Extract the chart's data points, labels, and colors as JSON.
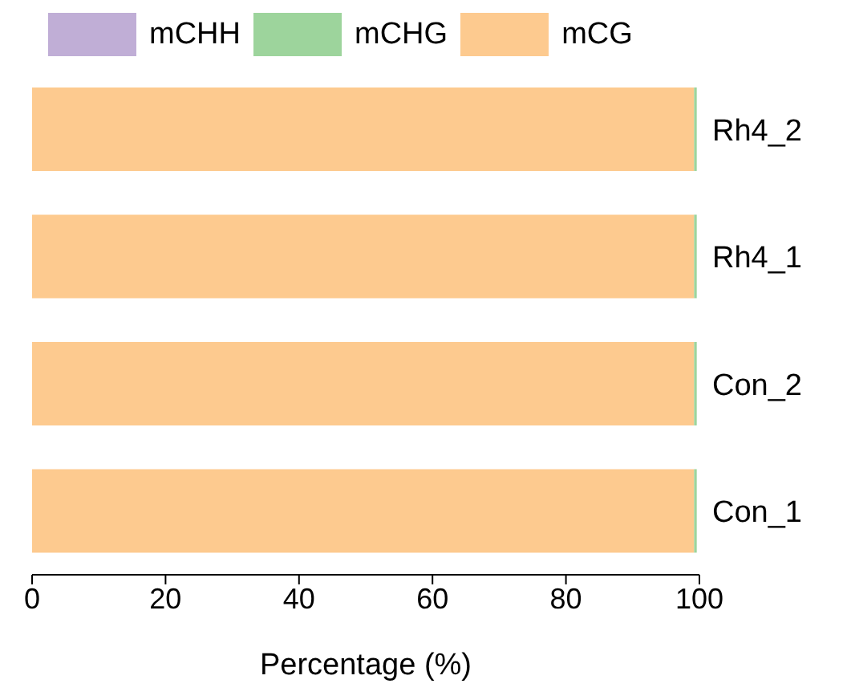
{
  "chart_data": {
    "type": "bar",
    "orientation": "horizontal",
    "stacked": true,
    "xlabel": "Percentage (%)",
    "categories": [
      "Rh4_2",
      "Rh4_1",
      "Con_2",
      "Con_1"
    ],
    "series": [
      {
        "name": "mCG",
        "color": "#fdca8f",
        "values": [
          99.2,
          99.2,
          99.2,
          99.2
        ]
      },
      {
        "name": "mCHG",
        "color": "#9dd49c",
        "values": [
          0.4,
          0.4,
          0.4,
          0.4
        ]
      },
      {
        "name": "mCHH",
        "color": "#c0aed6",
        "values": [
          null,
          null,
          null,
          null
        ]
      }
    ],
    "xlim": [
      0,
      100
    ],
    "xticks": [
      0,
      20,
      40,
      60,
      80,
      100
    ],
    "legend": "top",
    "grid": false
  }
}
